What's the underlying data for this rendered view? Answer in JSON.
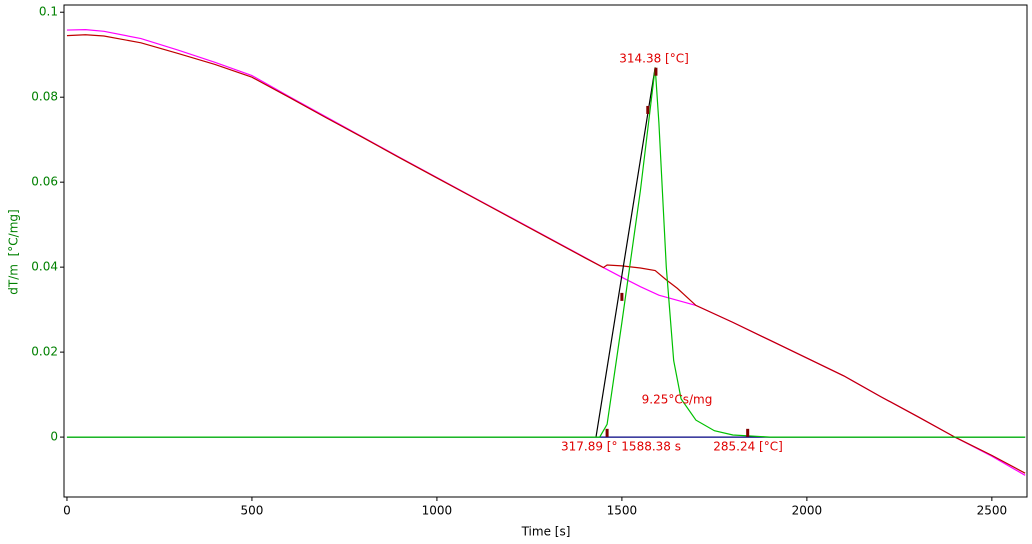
{
  "chart_data": {
    "type": "line",
    "xlabel": "Time [s]",
    "ylabel": "dT/m  [°C/mg]",
    "xlim": [
      -8,
      2595
    ],
    "ylim": [
      -0.0141,
      0.1017
    ],
    "xticks": [
      0,
      500,
      1000,
      1500,
      2000,
      2500
    ],
    "yticks": [
      0,
      0.02,
      0.04,
      0.06,
      0.08,
      0.1
    ],
    "ytick_color": "#008000",
    "series": [
      {
        "color": "#ff00ff",
        "style": "line",
        "x": [
          0,
          50,
          100,
          200,
          300,
          400,
          500,
          600,
          700,
          800,
          900,
          1000,
          1100,
          1200,
          1300,
          1400,
          1450,
          1500,
          1550,
          1600,
          1700,
          1800,
          1900,
          2000,
          2100,
          2200,
          2300,
          2400,
          2500,
          2590
        ],
        "values": [
          0.0958,
          0.0959,
          0.0955,
          0.0938,
          0.0911,
          0.0882,
          0.0851,
          0.0802,
          0.0754,
          0.0706,
          0.0658,
          0.0611,
          0.0564,
          0.0517,
          0.047,
          0.0423,
          0.0399,
          0.0376,
          0.0354,
          0.0334,
          0.031,
          0.027,
          0.0228,
          0.0186,
          0.0144,
          0.0095,
          0.0048,
          0.0,
          -0.0045,
          -0.009
        ]
      },
      {
        "color": "#c00000",
        "style": "line",
        "x": [
          0,
          50,
          100,
          200,
          300,
          400,
          500,
          600,
          700,
          800,
          900,
          1000,
          1100,
          1200,
          1300,
          1400,
          1450,
          1460,
          1500,
          1550,
          1590,
          1620,
          1650,
          1700,
          1800,
          1900,
          2000,
          2100,
          2200,
          2300,
          2400,
          2500,
          2590
        ],
        "values": [
          0.0945,
          0.0947,
          0.0944,
          0.0928,
          0.0903,
          0.0877,
          0.0847,
          0.08,
          0.0752,
          0.0705,
          0.0657,
          0.061,
          0.0563,
          0.0516,
          0.0469,
          0.0422,
          0.0399,
          0.0405,
          0.0403,
          0.0398,
          0.0392,
          0.037,
          0.035,
          0.031,
          0.027,
          0.0228,
          0.0186,
          0.0144,
          0.0095,
          0.0048,
          0.0,
          -0.0043,
          -0.0085
        ]
      },
      {
        "color": "#000080",
        "style": "line",
        "x": [
          0,
          2590
        ],
        "values": [
          0,
          0
        ]
      },
      {
        "color": "#000000",
        "style": "line",
        "x": [
          1430,
          1590
        ],
        "values": [
          0,
          0.087
        ]
      },
      {
        "color": "#00c000",
        "style": "line",
        "x": [
          0,
          1440,
          1460,
          1500,
          1550,
          1590,
          1600,
          1620,
          1640,
          1660,
          1700,
          1750,
          1800,
          1900,
          2590
        ],
        "values": [
          0,
          0,
          0.003,
          0.027,
          0.058,
          0.087,
          0.074,
          0.04,
          0.018,
          0.009,
          0.004,
          0.0015,
          0.0005,
          0,
          0
        ]
      },
      {
        "color": "#800000",
        "style": "marker",
        "x": [
          1460,
          1500,
          1570,
          1592,
          1840
        ],
        "values": [
          0.001,
          0.033,
          0.077,
          0.086,
          0.001
        ]
      }
    ],
    "annotations": [
      "314.38 [°C]",
      "9.25°Cs/mg",
      "317.89 [° 1588.38 s",
      "285.24 [°C]"
    ],
    "annotation_color": "#e00000"
  }
}
